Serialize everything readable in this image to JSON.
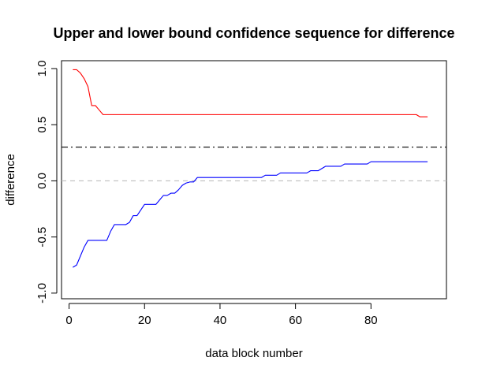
{
  "chart_data": {
    "type": "line",
    "title": "Upper and lower bound confidence sequence for difference",
    "xlabel": "data block number",
    "ylabel": "difference",
    "xlim": [
      -2,
      100
    ],
    "ylim": [
      -1.05,
      1.07
    ],
    "xticks": [
      0,
      20,
      40,
      60,
      80
    ],
    "yticks": [
      -1.0,
      -0.5,
      0.0,
      0.5,
      1.0
    ],
    "ytick_labels": [
      "-1.0",
      "-0.5",
      "0.0",
      "0.5",
      "1.0"
    ],
    "grid": false,
    "legend": "none",
    "series": [
      {
        "role": "upper",
        "color": "#ff0000",
        "style": "solid",
        "x": [
          1,
          2,
          3,
          4,
          5,
          6,
          7,
          8,
          9,
          10,
          90,
          91,
          92,
          93,
          94,
          95
        ],
        "y": [
          0.99,
          0.99,
          0.96,
          0.91,
          0.84,
          0.67,
          0.67,
          0.63,
          0.59,
          0.59,
          0.59,
          0.59,
          0.59,
          0.57,
          0.57,
          0.57
        ]
      },
      {
        "role": "lower",
        "color": "#0000ff",
        "style": "solid",
        "x": [
          1,
          2,
          3,
          4,
          5,
          6,
          7,
          8,
          9,
          10,
          11,
          12,
          13,
          14,
          15,
          16,
          17,
          18,
          19,
          20,
          21,
          22,
          23,
          24,
          25,
          26,
          27,
          28,
          29,
          30,
          31,
          32,
          33,
          34,
          35,
          40,
          45,
          50,
          51,
          52,
          53,
          54,
          55,
          56,
          57,
          58,
          59,
          60,
          61,
          62,
          63,
          64,
          65,
          66,
          67,
          68,
          69,
          70,
          71,
          72,
          73,
          74,
          75,
          76,
          77,
          78,
          79,
          80,
          85,
          90,
          95
        ],
        "y": [
          -0.77,
          -0.75,
          -0.67,
          -0.59,
          -0.53,
          -0.53,
          -0.53,
          -0.53,
          -0.53,
          -0.53,
          -0.45,
          -0.39,
          -0.39,
          -0.39,
          -0.39,
          -0.37,
          -0.31,
          -0.31,
          -0.26,
          -0.21,
          -0.21,
          -0.21,
          -0.21,
          -0.17,
          -0.13,
          -0.13,
          -0.11,
          -0.11,
          -0.08,
          -0.04,
          -0.02,
          -0.01,
          -0.01,
          0.03,
          0.03,
          0.03,
          0.03,
          0.03,
          0.03,
          0.05,
          0.05,
          0.05,
          0.05,
          0.07,
          0.07,
          0.07,
          0.07,
          0.07,
          0.07,
          0.07,
          0.07,
          0.09,
          0.09,
          0.09,
          0.11,
          0.13,
          0.13,
          0.13,
          0.13,
          0.13,
          0.15,
          0.15,
          0.15,
          0.15,
          0.15,
          0.15,
          0.15,
          0.17,
          0.17,
          0.17,
          0.17
        ]
      }
    ],
    "reference_lines": [
      {
        "y": 0.3,
        "color": "#000000",
        "style": "dashdot"
      },
      {
        "y": 0.0,
        "color": "#bebebe",
        "style": "dashed"
      }
    ]
  }
}
